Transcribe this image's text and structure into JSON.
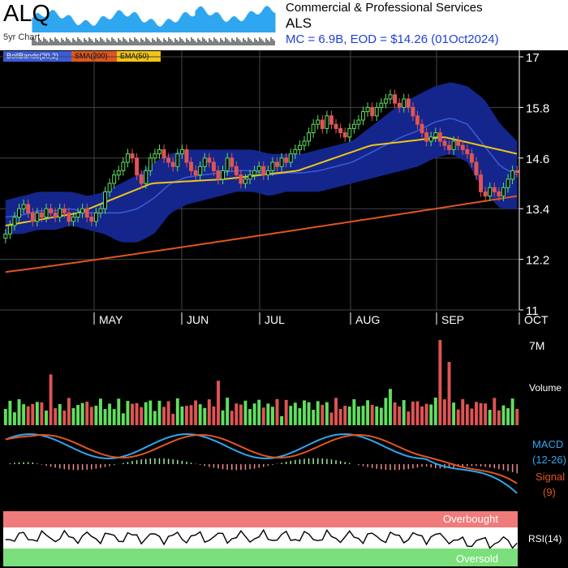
{
  "header": {
    "ticker": "ALQ",
    "subtitle": "5yr Chart",
    "sector": "Commercial & Professional Services",
    "name": "ALS",
    "market_info": "MC = 6.9B, EOD = $14.26 (01Oct2024)"
  },
  "legend": {
    "bollinger": "BollBands(20,2)",
    "sma": "SMA(200)",
    "ema": "EMA(50)"
  },
  "colors": {
    "boll_fill": "#14268c",
    "boll_mid": "#3b5bd8",
    "sma": "#e0561e",
    "ema": "#f0c419",
    "up": "#5fe05f",
    "down": "#e05454",
    "macd": "#2ea6f0",
    "signal": "#e0561e",
    "overbought": "#f07b7b",
    "oversold": "#7be07b"
  },
  "chart_data": {
    "type": "candlestick",
    "price_axis": {
      "ticks": [
        17,
        15.8,
        14.6,
        13.4,
        12.2,
        11
      ],
      "range": [
        11,
        17
      ]
    },
    "months": [
      "MAY",
      "JUN",
      "JUL",
      "AUG",
      "SEP",
      "OCT"
    ],
    "close_series": [
      12.8,
      13.0,
      13.2,
      13.4,
      13.5,
      13.3,
      13.1,
      13.3,
      13.2,
      13.4,
      13.3,
      13.2,
      13.4,
      13.3,
      13.1,
      13.2,
      13.3,
      13.4,
      13.2,
      13.1,
      13.3,
      13.4,
      13.8,
      14.0,
      14.2,
      14.3,
      14.5,
      14.7,
      14.6,
      14.2,
      14.0,
      14.3,
      14.6,
      14.7,
      14.8,
      14.6,
      14.5,
      14.4,
      14.7,
      14.8,
      14.5,
      14.3,
      14.2,
      14.4,
      14.6,
      14.5,
      14.3,
      14.1,
      14.3,
      14.6,
      14.4,
      14.2,
      14.0,
      14.1,
      14.2,
      14.3,
      14.4,
      14.2,
      14.3,
      14.5,
      14.4,
      14.6,
      14.5,
      14.7,
      14.8,
      14.9,
      15.0,
      15.2,
      15.4,
      15.5,
      15.3,
      15.6,
      15.4,
      15.3,
      15.2,
      15.1,
      15.3,
      15.4,
      15.5,
      15.7,
      15.8,
      15.6,
      15.8,
      15.9,
      16.0,
      16.1,
      15.9,
      15.8,
      16.0,
      15.8,
      15.6,
      15.4,
      15.2,
      15.0,
      15.1,
      15.2,
      15.0,
      14.9,
      14.8,
      15.0,
      14.9,
      14.8,
      14.7,
      14.5,
      14.2,
      13.8,
      13.7,
      13.9,
      13.8,
      13.7,
      13.9,
      14.1,
      14.3,
      14.26
    ],
    "bollinger": {
      "upper": [
        13.6,
        13.7,
        13.8,
        13.8,
        13.8,
        13.7,
        13.8,
        14.0,
        14.2,
        14.5,
        14.7,
        14.8,
        14.8,
        14.8,
        14.8,
        14.8,
        14.7,
        14.7,
        14.7,
        14.8,
        14.9,
        15.0,
        15.3,
        15.6,
        15.9,
        16.1,
        16.3,
        16.4,
        16.3,
        16.0,
        15.4,
        15.0
      ],
      "lower": [
        12.8,
        12.8,
        12.9,
        12.9,
        13.0,
        12.9,
        12.8,
        12.6,
        12.6,
        12.8,
        13.3,
        13.5,
        13.6,
        13.7,
        13.8,
        13.8,
        13.7,
        13.8,
        13.8,
        13.8,
        13.9,
        14.0,
        14.1,
        14.2,
        14.3,
        14.4,
        14.6,
        14.7,
        14.5,
        13.8,
        13.4,
        13.4
      ]
    },
    "sma200": [
      11.9,
      13.7
    ],
    "ema50": [
      13.0,
      13.3,
      14.0,
      14.1,
      14.3,
      14.9,
      15.1,
      14.7
    ],
    "volume": {
      "max_label": "7M",
      "label": "Volume"
    },
    "macd": {
      "label1": "MACD",
      "label2": "(12-26)",
      "label3": "Signal",
      "label4": "(9)"
    },
    "rsi": {
      "label": "RSI(14)",
      "overbought": "Overbought",
      "oversold": "Oversold"
    }
  }
}
